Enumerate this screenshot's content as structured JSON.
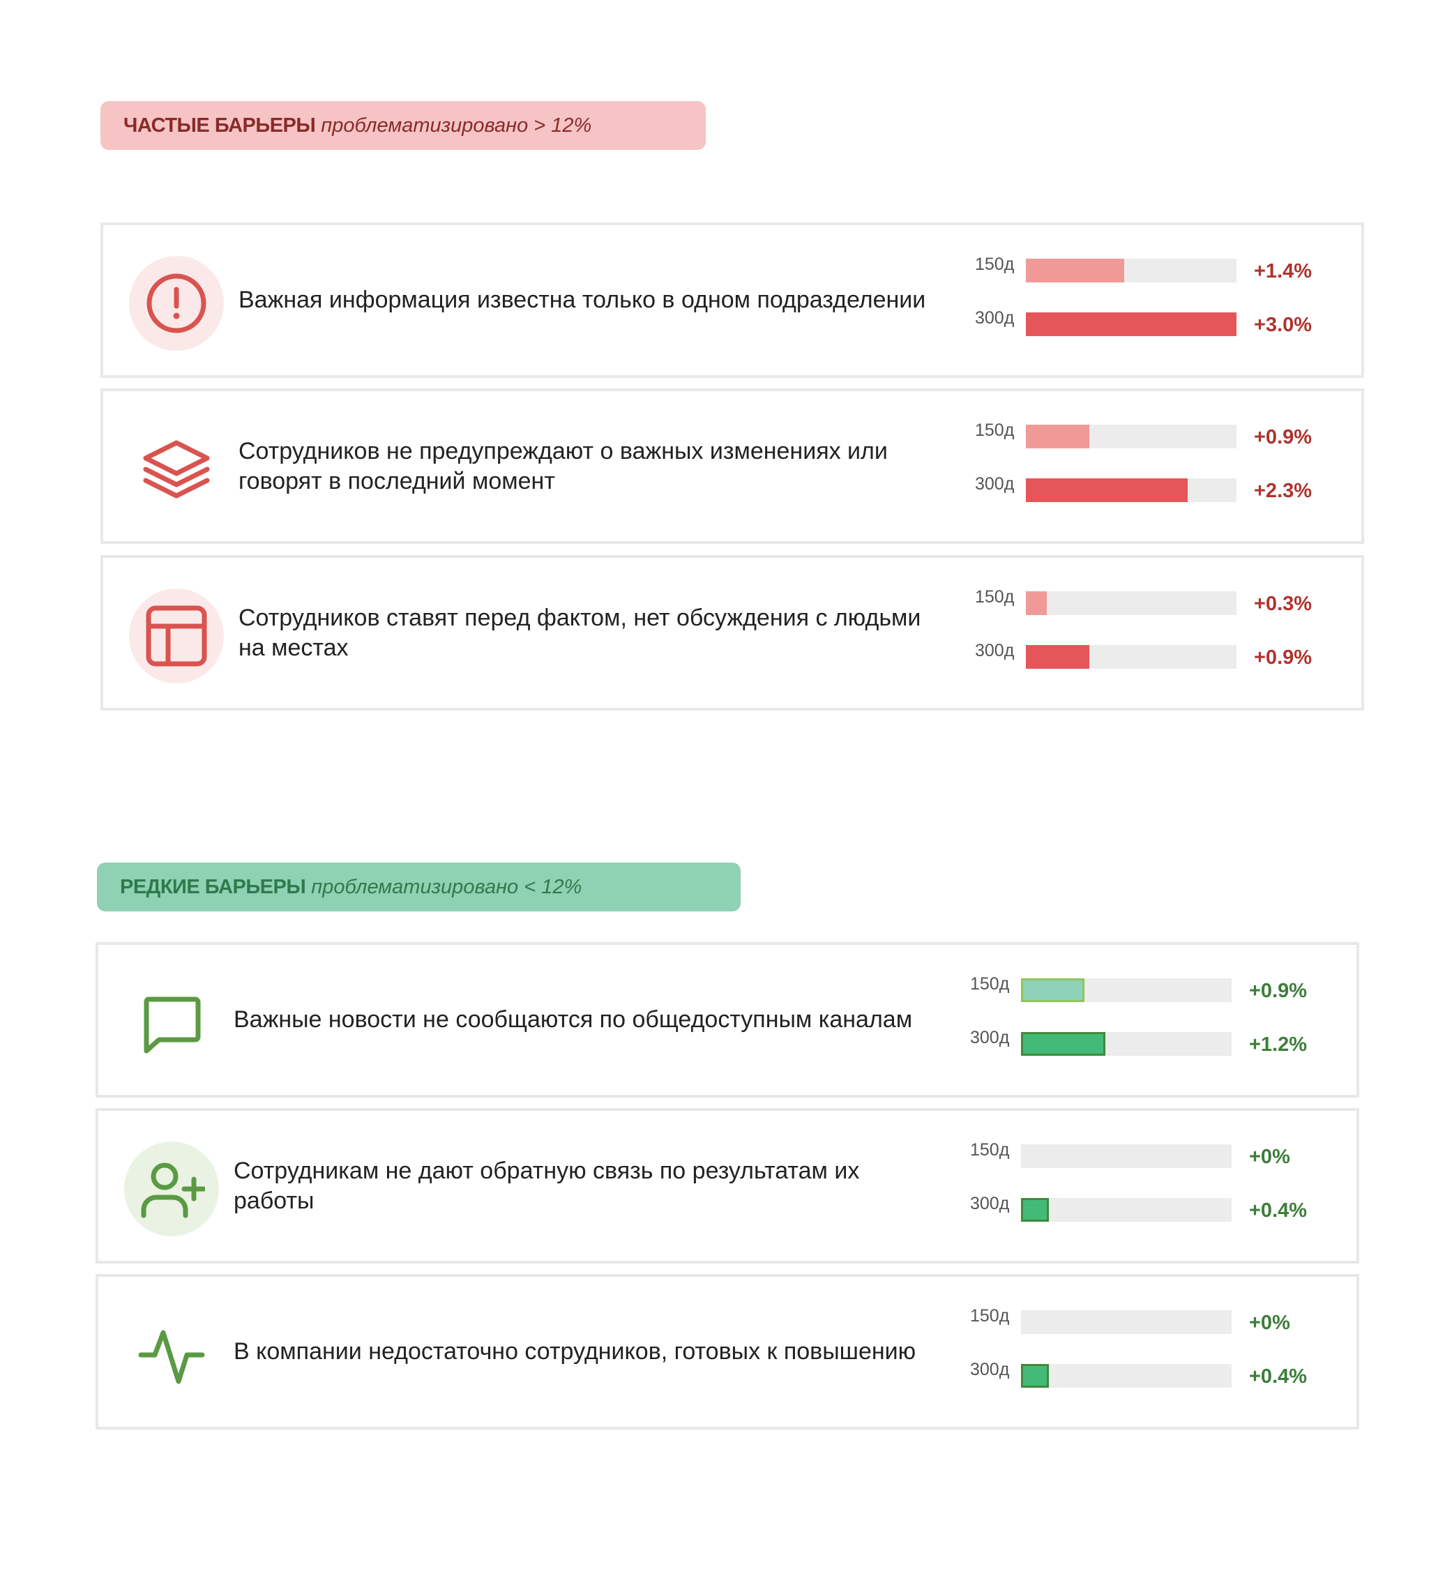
{
  "sections": [
    {
      "title": "ЧАСТЫЕ БАРЬЕРЫ",
      "subtitle": "проблематизировано > 12%",
      "theme": {
        "header_bg": "#f6c4c4",
        "header_text": "#8a2a2a",
        "icon_color": "#d9534f",
        "icon_bg": "#fbe9e9",
        "delta_color": "#b0332e",
        "fill_150": "#f09a98",
        "fill_300": "#e5565a",
        "border_150": "",
        "border_300": ""
      },
      "items": [
        {
          "icon": "alert-circle-icon",
          "icon_bg": true,
          "label": "Важная информация известна только в одном подразделении",
          "bars": [
            {
              "period": "150д",
              "value": 1.4,
              "delta": "+1.4%"
            },
            {
              "period": "300д",
              "value": 3.0,
              "delta": "+3.0%"
            }
          ]
        },
        {
          "icon": "layers-icon",
          "icon_bg": false,
          "label": "Сотрудников не предупреждают о важных изменениях или говорят в последний момент",
          "bars": [
            {
              "period": "150д",
              "value": 0.9,
              "delta": "+0.9%"
            },
            {
              "period": "300д",
              "value": 2.3,
              "delta": "+2.3%"
            }
          ]
        },
        {
          "icon": "layout-icon",
          "icon_bg": true,
          "label": "Сотрудников ставят перед фактом, нет обсуждения с людьми на местах",
          "bars": [
            {
              "period": "150д",
              "value": 0.3,
              "delta": "+0.3%"
            },
            {
              "period": "300д",
              "value": 0.9,
              "delta": "+0.9%"
            }
          ]
        }
      ]
    },
    {
      "title": "РЕДКИЕ БАРЬЕРЫ",
      "subtitle": "проблематизировано < 12%",
      "theme": {
        "header_bg": "#8fd1b3",
        "header_text": "#2f7a4d",
        "icon_color": "#5a9a43",
        "icon_bg": "#eaf3e3",
        "delta_color": "#3c7e3a",
        "fill_150": "#8fd1b9",
        "fill_300": "#44ba78",
        "border_150": "#8cc65a",
        "border_300": "#3e8a3a"
      },
      "items": [
        {
          "icon": "message-square-icon",
          "icon_bg": false,
          "label": "Важные новости не сообщаются по общедоступным каналам",
          "bars": [
            {
              "period": "150д",
              "value": 0.9,
              "delta": "+0.9%"
            },
            {
              "period": "300д",
              "value": 1.2,
              "delta": "+1.2%"
            }
          ]
        },
        {
          "icon": "user-plus-icon",
          "icon_bg": true,
          "label": "Сотрудникам не дают обратную связь по результатам их работы",
          "bars": [
            {
              "period": "150д",
              "value": 0,
              "delta": "+0%"
            },
            {
              "period": "300д",
              "value": 0.4,
              "delta": "+0.4%"
            }
          ]
        },
        {
          "icon": "activity-icon",
          "icon_bg": false,
          "label": "В компании недостаточно сотрудников, готовых к повышению",
          "bars": [
            {
              "period": "150д",
              "value": 0,
              "delta": "+0%"
            },
            {
              "period": "300д",
              "value": 0.4,
              "delta": "+0.4%"
            }
          ]
        }
      ]
    }
  ],
  "chart_data": {
    "type": "bar",
    "orientation": "horizontal",
    "categories": [
      "Важная информация известна только в одном подразделении",
      "Сотрудников не предупреждают о важных изменениях или говорят в последний момент",
      "Сотрудников ставят перед фактом, нет обсуждения с людьми на местах",
      "Важные новости не сообщаются по общедоступным каналам",
      "Сотрудникам не дают обратную связь по результатам их работы",
      "В компании недостаточно сотрудников, готовых к повышению"
    ],
    "series": [
      {
        "name": "150д",
        "values": [
          1.4,
          0.9,
          0.3,
          0.9,
          0,
          0
        ]
      },
      {
        "name": "300д",
        "values": [
          3.0,
          2.3,
          0.9,
          1.2,
          0.4,
          0.4
        ]
      }
    ],
    "xlim": [
      0,
      3.0
    ],
    "grid": false
  }
}
